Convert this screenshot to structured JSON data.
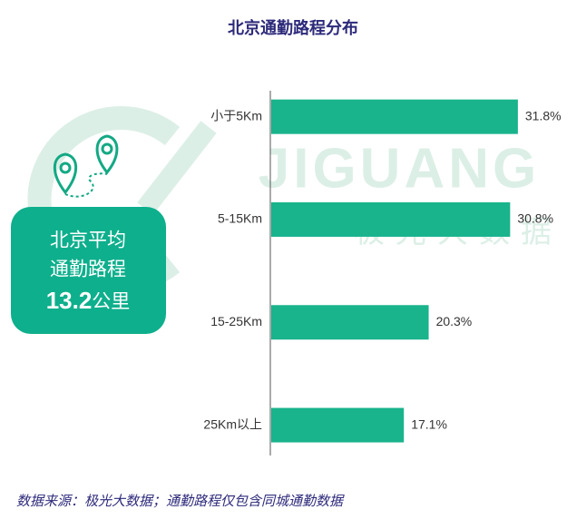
{
  "chart_data": {
    "type": "bar",
    "orientation": "horizontal",
    "title": "北京通勤路程分布",
    "categories": [
      "小于5Km",
      "5-15Km",
      "15-25Km",
      "25Km以上"
    ],
    "values": [
      31.8,
      30.8,
      20.3,
      17.1
    ],
    "value_labels": [
      "31.8%",
      "30.8%",
      "20.3%",
      "17.1%"
    ],
    "color": "#19b38c",
    "callout": {
      "lines": [
        "北京平均",
        "通勤路程"
      ],
      "value": 13.2,
      "unit": "公里"
    },
    "watermark": [
      "JIGUANG",
      "极光大数据"
    ],
    "source": "数据来源：极光大数据；通勤路程仅包含同城通勤数据"
  }
}
